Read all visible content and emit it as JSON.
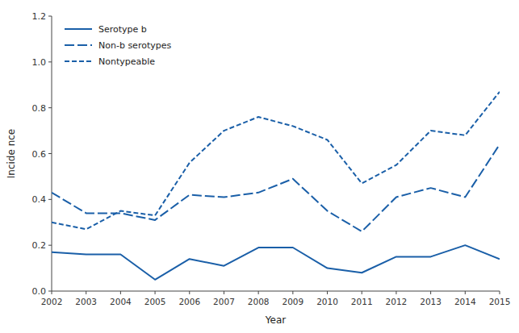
{
  "chart_data": {
    "type": "line",
    "xlabel": "Year",
    "ylabel": "Incide nce",
    "x": [
      2002,
      2003,
      2004,
      2005,
      2006,
      2007,
      2008,
      2009,
      2010,
      2011,
      2012,
      2013,
      2014,
      2015
    ],
    "series": [
      {
        "name": "Serotype b",
        "color": "#1a5fa8",
        "line_style": "solid",
        "values": [
          0.17,
          0.16,
          0.16,
          0.05,
          0.14,
          0.11,
          0.19,
          0.19,
          0.1,
          0.08,
          0.15,
          0.15,
          0.2,
          0.14
        ]
      },
      {
        "name": "Non-b serotypes",
        "color": "#1a5fa8",
        "line_style": "long-dash",
        "values": [
          0.43,
          0.34,
          0.34,
          0.31,
          0.42,
          0.41,
          0.43,
          0.49,
          0.35,
          0.26,
          0.41,
          0.45,
          0.41,
          0.64
        ]
      },
      {
        "name": "Nontypeable",
        "color": "#1a5fa8",
        "line_style": "dash",
        "values": [
          0.3,
          0.27,
          0.35,
          0.33,
          0.56,
          0.7,
          0.76,
          0.72,
          0.66,
          0.47,
          0.55,
          0.7,
          0.68,
          0.87
        ]
      }
    ],
    "xlim": [
      2002,
      2015
    ],
    "xticks": [
      2002,
      2003,
      2004,
      2005,
      2006,
      2007,
      2008,
      2009,
      2010,
      2011,
      2012,
      2013,
      2014,
      2015
    ],
    "ylim": [
      0,
      1.2
    ],
    "yticks": [
      {
        "value": 0,
        "label": "0.0"
      },
      0.2,
      0.4,
      0.6,
      0.8,
      {
        "value": 1,
        "label": "1.0"
      },
      1.2
    ],
    "grid": false,
    "legend": "upper-left"
  }
}
